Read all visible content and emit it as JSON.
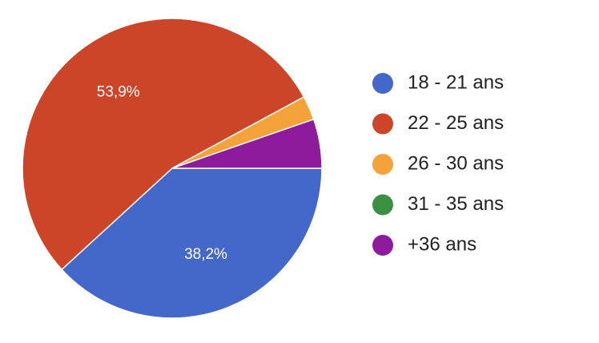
{
  "chart_data": {
    "type": "pie",
    "categories": [
      "18 - 21 ans",
      "22 - 25 ans",
      "26 - 30 ans",
      "31 - 35 ans",
      "+36 ans"
    ],
    "values": [
      38.2,
      53.9,
      2.6,
      0,
      5.3
    ],
    "value_labels": [
      "38,2%",
      "53,9%",
      null,
      null,
      null
    ],
    "colors": [
      "#4368c9",
      "#cc4529",
      "#f4a23a",
      "#3b9142",
      "#8e1b9c"
    ],
    "legend": "right"
  }
}
